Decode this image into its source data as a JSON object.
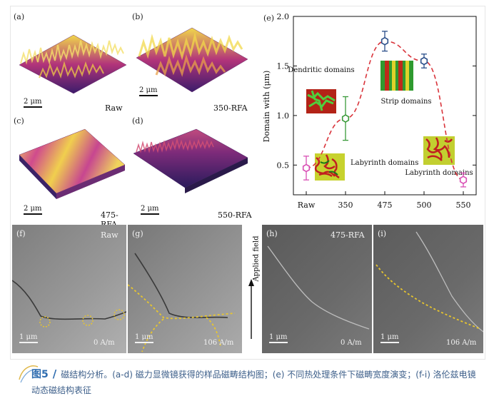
{
  "panels": {
    "a": {
      "label": "(a)",
      "tag": "Raw",
      "scale": "2 μm"
    },
    "b": {
      "label": "(b)",
      "tag": "350-RFA",
      "scale": "2 μm"
    },
    "c": {
      "label": "(c)",
      "tag": "475-RFA",
      "scale": "2 μm"
    },
    "d": {
      "label": "(d)",
      "tag": "550-RFA",
      "scale": "2 μm"
    },
    "e": {
      "label": "(e)"
    },
    "f": {
      "label": "(f)",
      "tag": "Raw",
      "scale": "1 μm",
      "field": "0 A/m"
    },
    "g": {
      "label": "(g)",
      "scale": "1 μm",
      "field": "106 A/m"
    },
    "h": {
      "label": "(h)",
      "tag": "475-RFA",
      "scale": "1 μm",
      "field": "0 A/m"
    },
    "i": {
      "label": "(i)",
      "scale": "1 μm",
      "field": "106 A/m"
    },
    "applied_field": "Applied field"
  },
  "chart_data": {
    "type": "scatter",
    "title": "",
    "xlabel": "",
    "ylabel": "Domain with (μm)",
    "categories": [
      "Raw",
      "350",
      "475",
      "500",
      "550"
    ],
    "values": [
      0.47,
      0.97,
      1.75,
      1.55,
      0.35
    ],
    "errors": [
      0.12,
      0.22,
      0.1,
      0.07,
      0.07
    ],
    "point_colors": [
      "#d94fb5",
      "#3a9a3a",
      "#2b4f8a",
      "#2b4f8a",
      "#d94fb5"
    ],
    "ylim": [
      0.2,
      2.0
    ],
    "yticks": [
      "0.5",
      "1.0",
      "1.5",
      "2.0"
    ],
    "trend_color": "#d9343b",
    "annotations": [
      "Dendritic domains",
      "Labyrinth domains",
      "Strip domains",
      "Labyrinth domains"
    ]
  },
  "caption": {
    "fig": "图5",
    "text": "磁结构分析。(a-d) 磁力显微镜获得的样品磁畴结构图；(e) 不同热处理条件下磁畴宽度演变；(f-i) 洛伦兹电镜动态磁结构表征"
  }
}
